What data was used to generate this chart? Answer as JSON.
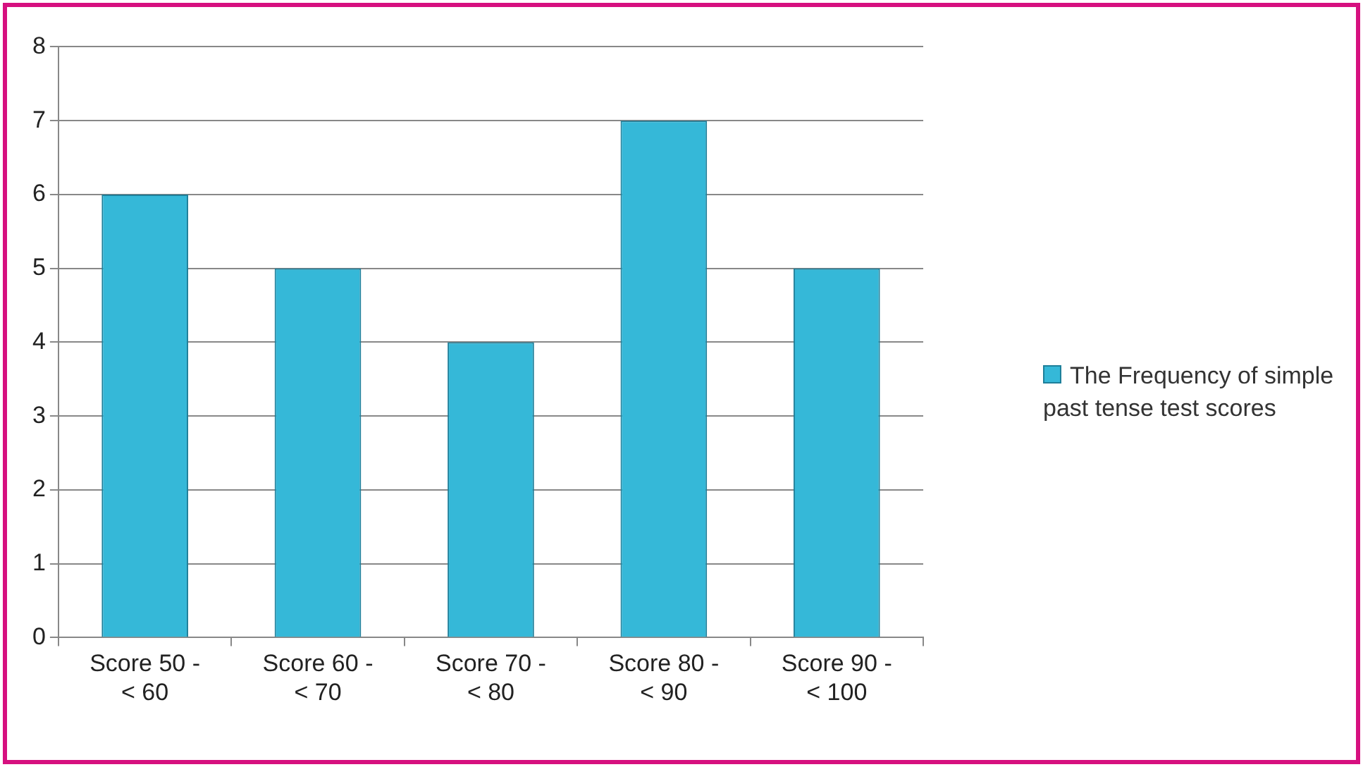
{
  "chart_data": {
    "type": "bar",
    "categories": [
      "Score 50 - < 60",
      "Score 60 - < 70",
      "Score 70 - < 80",
      "Score 80 - < 90",
      "Score 90 - < 100"
    ],
    "series": [
      {
        "name": "The Frequency of simple past tense test scores",
        "color": "#35b8d8",
        "values": [
          6,
          5,
          4,
          7,
          5
        ]
      }
    ],
    "ylim": [
      0,
      8
    ],
    "yticks": [
      0,
      1,
      2,
      3,
      4,
      5,
      6,
      7,
      8
    ],
    "grid": "y",
    "legend": "right"
  }
}
